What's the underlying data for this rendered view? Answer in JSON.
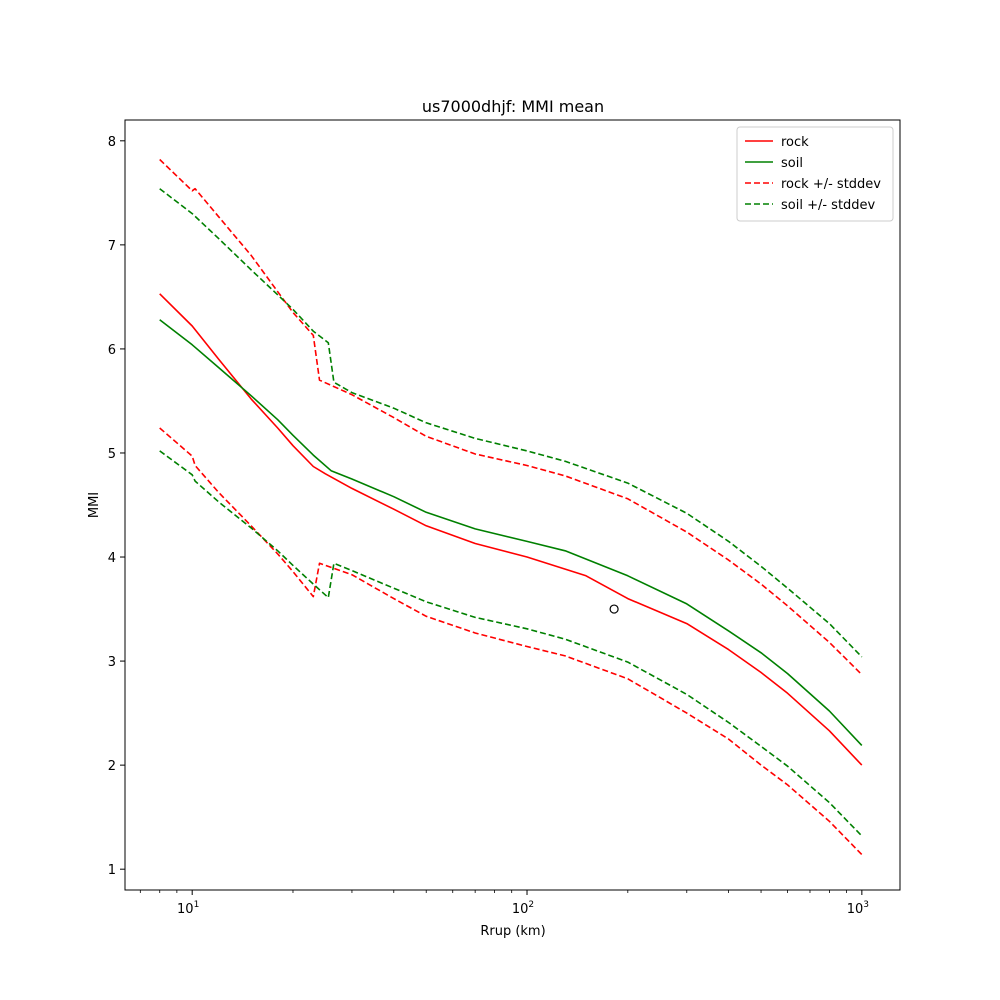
{
  "chart_data": {
    "type": "line",
    "title": "us7000dhjf: MMI mean",
    "xlabel": "Rrup (km)",
    "ylabel": "MMI",
    "xscale": "log",
    "xlim": [
      6.3,
      1300
    ],
    "ylim": [
      0.8,
      8.2
    ],
    "grid": false,
    "legend_position": "top-right",
    "x_ticks": [
      {
        "value": 10,
        "label": "10",
        "sup": "1"
      },
      {
        "value": 100,
        "label": "10",
        "sup": "2"
      },
      {
        "value": 1000,
        "label": "10",
        "sup": "3"
      }
    ],
    "y_ticks": [
      {
        "value": 1,
        "label": "1"
      },
      {
        "value": 2,
        "label": "2"
      },
      {
        "value": 3,
        "label": "3"
      },
      {
        "value": 4,
        "label": "4"
      },
      {
        "value": 5,
        "label": "5"
      },
      {
        "value": 6,
        "label": "6"
      },
      {
        "value": 7,
        "label": "7"
      },
      {
        "value": 8,
        "label": "8"
      }
    ],
    "series": [
      {
        "name": "rock",
        "color": "#ff0000",
        "dash": "solid",
        "points": [
          [
            8,
            6.53
          ],
          [
            10,
            6.22
          ],
          [
            12,
            5.9
          ],
          [
            15,
            5.52
          ],
          [
            18,
            5.24
          ],
          [
            20,
            5.07
          ],
          [
            23,
            4.87
          ],
          [
            25,
            4.8
          ],
          [
            30,
            4.66
          ],
          [
            40,
            4.46
          ],
          [
            50,
            4.3
          ],
          [
            70,
            4.13
          ],
          [
            100,
            4.0
          ],
          [
            150,
            3.82
          ],
          [
            200,
            3.6
          ],
          [
            300,
            3.36
          ],
          [
            400,
            3.11
          ],
          [
            500,
            2.89
          ],
          [
            600,
            2.69
          ],
          [
            800,
            2.33
          ],
          [
            1000,
            2.0
          ]
        ]
      },
      {
        "name": "soil",
        "color": "#008000",
        "dash": "solid",
        "points": [
          [
            8,
            6.28
          ],
          [
            10,
            6.04
          ],
          [
            12,
            5.82
          ],
          [
            15,
            5.55
          ],
          [
            18,
            5.32
          ],
          [
            20,
            5.17
          ],
          [
            23,
            4.98
          ],
          [
            26,
            4.83
          ],
          [
            30,
            4.75
          ],
          [
            40,
            4.58
          ],
          [
            50,
            4.43
          ],
          [
            70,
            4.27
          ],
          [
            100,
            4.15
          ],
          [
            130,
            4.06
          ],
          [
            200,
            3.82
          ],
          [
            300,
            3.55
          ],
          [
            400,
            3.29
          ],
          [
            500,
            3.08
          ],
          [
            600,
            2.88
          ],
          [
            800,
            2.52
          ],
          [
            1000,
            2.19
          ]
        ]
      },
      {
        "name": "rock +/- stddev",
        "color": "#ff0000",
        "dash": "dashed",
        "points": [
          [
            8,
            7.82
          ],
          [
            10,
            7.52
          ],
          [
            10.2,
            7.54
          ],
          [
            12,
            7.27
          ],
          [
            15,
            6.9
          ],
          [
            18,
            6.55
          ],
          [
            20,
            6.35
          ],
          [
            23,
            6.13
          ],
          [
            24,
            5.7
          ],
          [
            30,
            5.56
          ],
          [
            40,
            5.34
          ],
          [
            50,
            5.16
          ],
          [
            70,
            4.99
          ],
          [
            100,
            4.88
          ],
          [
            130,
            4.78
          ],
          [
            200,
            4.56
          ],
          [
            300,
            4.24
          ],
          [
            400,
            3.97
          ],
          [
            500,
            3.74
          ],
          [
            600,
            3.53
          ],
          [
            800,
            3.18
          ],
          [
            1000,
            2.87
          ]
        ]
      },
      {
        "name": "",
        "color": "#ff0000",
        "dash": "dashed",
        "points": [
          [
            8,
            5.24
          ],
          [
            10,
            4.97
          ],
          [
            10.2,
            4.88
          ],
          [
            12,
            4.62
          ],
          [
            15,
            4.3
          ],
          [
            18,
            4.03
          ],
          [
            20,
            3.86
          ],
          [
            23,
            3.62
          ],
          [
            24,
            3.94
          ],
          [
            30,
            3.83
          ],
          [
            40,
            3.6
          ],
          [
            50,
            3.43
          ],
          [
            70,
            3.27
          ],
          [
            100,
            3.14
          ],
          [
            130,
            3.05
          ],
          [
            200,
            2.83
          ],
          [
            300,
            2.5
          ],
          [
            400,
            2.25
          ],
          [
            500,
            2.0
          ],
          [
            600,
            1.81
          ],
          [
            800,
            1.46
          ],
          [
            1000,
            1.14
          ]
        ]
      },
      {
        "name": "soil +/- stddev",
        "color": "#008000",
        "dash": "dashed",
        "points": [
          [
            8,
            7.54
          ],
          [
            10,
            7.3
          ],
          [
            12,
            7.06
          ],
          [
            15,
            6.76
          ],
          [
            18,
            6.52
          ],
          [
            20,
            6.38
          ],
          [
            23,
            6.17
          ],
          [
            25.5,
            6.06
          ],
          [
            26.5,
            5.68
          ],
          [
            30,
            5.58
          ],
          [
            40,
            5.43
          ],
          [
            50,
            5.29
          ],
          [
            70,
            5.14
          ],
          [
            100,
            5.02
          ],
          [
            130,
            4.92
          ],
          [
            200,
            4.71
          ],
          [
            300,
            4.42
          ],
          [
            400,
            4.15
          ],
          [
            500,
            3.91
          ],
          [
            600,
            3.7
          ],
          [
            800,
            3.36
          ],
          [
            1000,
            3.04
          ]
        ]
      },
      {
        "name": "",
        "color": "#008000",
        "dash": "dashed",
        "points": [
          [
            8,
            5.02
          ],
          [
            10,
            4.79
          ],
          [
            10.2,
            4.73
          ],
          [
            12,
            4.53
          ],
          [
            15,
            4.28
          ],
          [
            18,
            4.06
          ],
          [
            20,
            3.92
          ],
          [
            23,
            3.74
          ],
          [
            25.5,
            3.61
          ],
          [
            26.5,
            3.94
          ],
          [
            30,
            3.87
          ],
          [
            40,
            3.7
          ],
          [
            50,
            3.57
          ],
          [
            70,
            3.42
          ],
          [
            100,
            3.31
          ],
          [
            130,
            3.21
          ],
          [
            200,
            2.99
          ],
          [
            300,
            2.68
          ],
          [
            400,
            2.41
          ],
          [
            500,
            2.18
          ],
          [
            600,
            1.99
          ],
          [
            800,
            1.64
          ],
          [
            1000,
            1.32
          ]
        ]
      }
    ],
    "observations": [
      {
        "x": 182,
        "y": 3.5,
        "marker": "open-circle"
      }
    ]
  }
}
